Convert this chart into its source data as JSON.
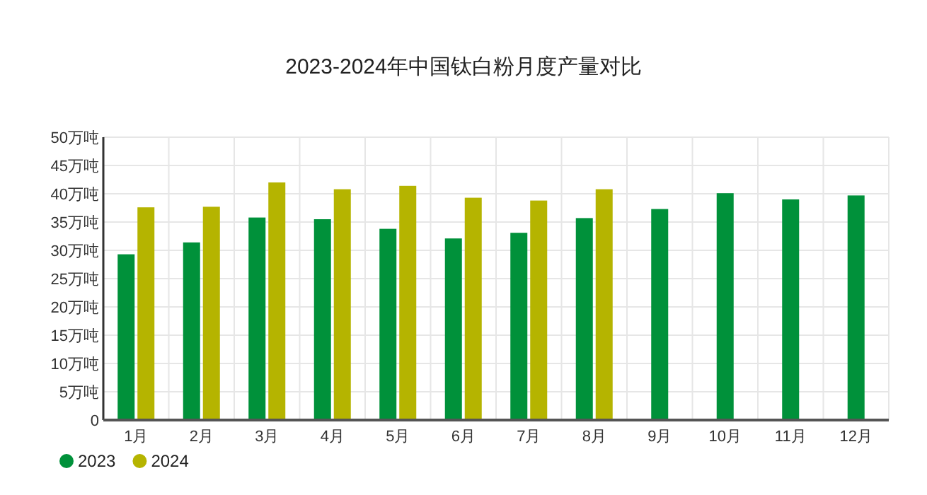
{
  "chart_data": {
    "type": "bar",
    "title": "2023-2024年中国钛白粉月度产量对比",
    "categories": [
      "1月",
      "2月",
      "3月",
      "4月",
      "5月",
      "6月",
      "7月",
      "8月",
      "9月",
      "10月",
      "11月",
      "12月"
    ],
    "series": [
      {
        "name": "2023",
        "color": "#00913a",
        "values": [
          29.3,
          31.4,
          35.8,
          35.5,
          33.8,
          32.1,
          33.1,
          35.7,
          37.3,
          40.1,
          39.0,
          39.7
        ]
      },
      {
        "name": "2024",
        "color": "#b5b400",
        "values": [
          37.6,
          37.7,
          42.0,
          40.8,
          41.4,
          39.3,
          38.8,
          40.8,
          null,
          null,
          null,
          null
        ]
      }
    ],
    "ylim": [
      0,
      50
    ],
    "yticks": [
      0,
      {
        "value": 5,
        "label": "5万吨"
      },
      {
        "value": 10,
        "label": "10万吨"
      },
      {
        "value": 15,
        "label": "15万吨"
      },
      {
        "value": 20,
        "label": "20万吨"
      },
      {
        "value": 25,
        "label": "25万吨"
      },
      {
        "value": 30,
        "label": "30万吨"
      },
      {
        "value": 35,
        "label": "35万吨"
      },
      {
        "value": 40,
        "label": "40万吨"
      },
      {
        "value": 45,
        "label": "45万吨"
      },
      {
        "value": 50,
        "label": "50万吨"
      }
    ],
    "grid": true,
    "legend": "bottom left"
  }
}
